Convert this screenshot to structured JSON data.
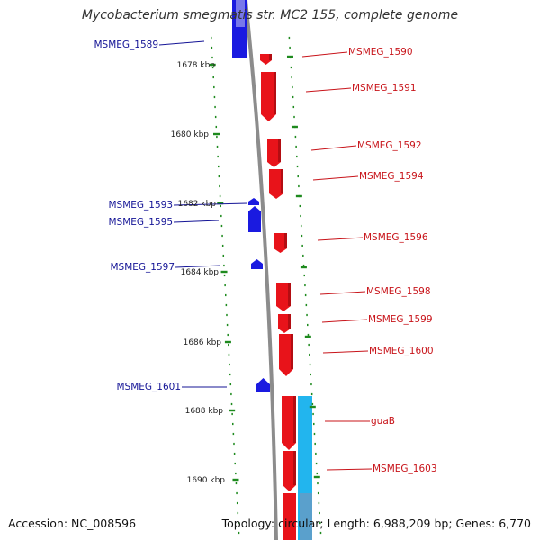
{
  "title": "Mycobacterium smegmatis str. MC2 155, complete genome",
  "footer": {
    "accession": "Accession: NC_008596",
    "topology": "Topology: circular; Length: 6,988,209 bp; Genes: 6,770"
  },
  "colors": {
    "forward_gene": "#e8131a",
    "reverse_gene": "#1a1ae0",
    "rna_gene": "#22b5ee",
    "backbone": "#8c8c8c",
    "tick": "#1e8a1e",
    "forward_label": "#c8141a",
    "reverse_label": "#141496"
  },
  "ruler_labels": [
    "1678 kbp",
    "1680 kbp",
    "1682 kbp",
    "1684 kbp",
    "1686 kbp",
    "1688 kbp",
    "1690 kbp"
  ],
  "reverse_genes": [
    "MSMEG_1589",
    "MSMEG_1593",
    "MSMEG_1595",
    "MSMEG_1597",
    "MSMEG_1601"
  ],
  "forward_genes": [
    "MSMEG_1590",
    "MSMEG_1591",
    "MSMEG_1592",
    "MSMEG_1594",
    "MSMEG_1596",
    "MSMEG_1598",
    "MSMEG_1599",
    "MSMEG_1600",
    "guaB",
    "MSMEG_1603"
  ]
}
